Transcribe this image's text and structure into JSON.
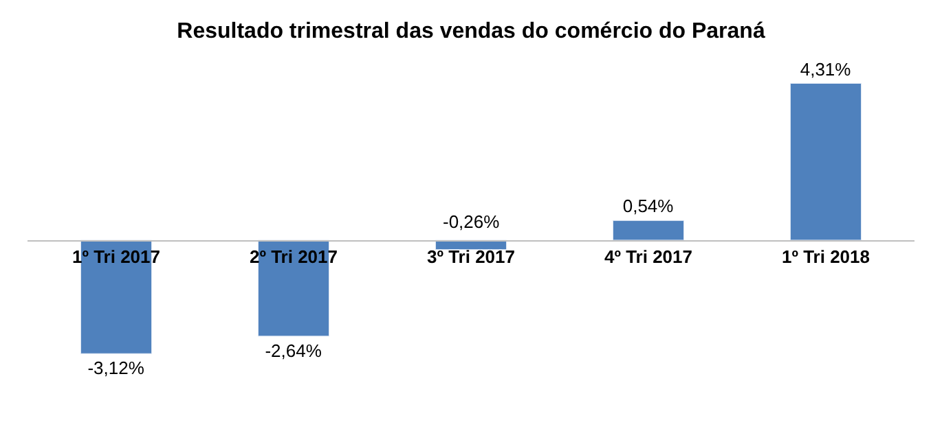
{
  "chart_data": {
    "type": "bar",
    "title": "Resultado trimestral das vendas do comércio do Paraná",
    "categories": [
      "1º Tri 2017",
      "2º Tri 2017",
      "3º Tri 2017",
      "4º Tri 2017",
      "1º Tri 2018"
    ],
    "values": [
      -3.12,
      -2.64,
      -0.26,
      0.54,
      4.31
    ],
    "value_labels": [
      "-3,12%",
      "-2,64%",
      "-0,26%",
      "0,54%",
      "4,31%"
    ],
    "color": "#4f81bd"
  }
}
